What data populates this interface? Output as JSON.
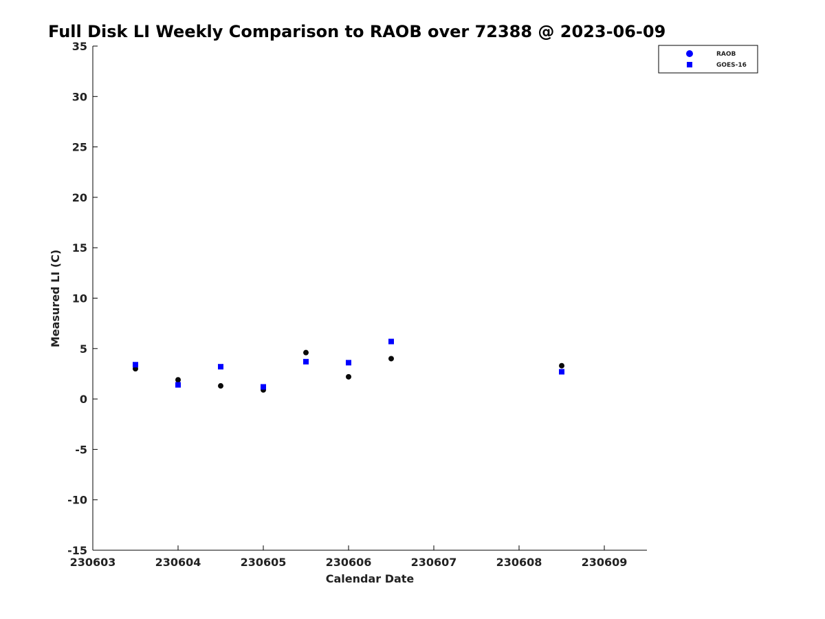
{
  "chart_data": {
    "type": "scatter",
    "title": "Full Disk LI Weekly Comparison to RAOB over 72388 @ 2023-06-09",
    "xlabel": "Calendar Date",
    "ylabel": "Measured LI (C)",
    "xlim": [
      230603,
      230609.5
    ],
    "ylim": [
      -15,
      35
    ],
    "xticks": [
      230603,
      230604,
      230605,
      230606,
      230607,
      230608,
      230609
    ],
    "xtick_labels": [
      "230603",
      "230604",
      "230605",
      "230606",
      "230607",
      "230608",
      "230609"
    ],
    "yticks": [
      35,
      30,
      25,
      20,
      15,
      10,
      5,
      0,
      -5,
      -10,
      -15
    ],
    "ytick_labels": [
      "35",
      "30",
      "25",
      "20",
      "15",
      "10",
      "5",
      "0",
      "-5",
      "-10",
      "-15"
    ],
    "grid": false,
    "legend_position": "top-right",
    "series": [
      {
        "name": "RAOB",
        "marker": "circle",
        "color": "#0a0a0a",
        "legend_color": "#0000ff",
        "x": [
          230603.5,
          230604.0,
          230604.5,
          230605.0,
          230605.5,
          230606.0,
          230606.5,
          230608.5
        ],
        "y": [
          3.0,
          1.9,
          1.3,
          0.9,
          4.6,
          2.2,
          4.0,
          3.3
        ]
      },
      {
        "name": "GOES-16",
        "marker": "square",
        "color": "#0000ff",
        "legend_color": "#0000ff",
        "x": [
          230603.5,
          230604.0,
          230604.5,
          230605.0,
          230605.5,
          230606.0,
          230606.5,
          230608.5
        ],
        "y": [
          3.4,
          1.4,
          3.2,
          1.2,
          3.7,
          3.6,
          5.7,
          2.7
        ]
      }
    ]
  }
}
